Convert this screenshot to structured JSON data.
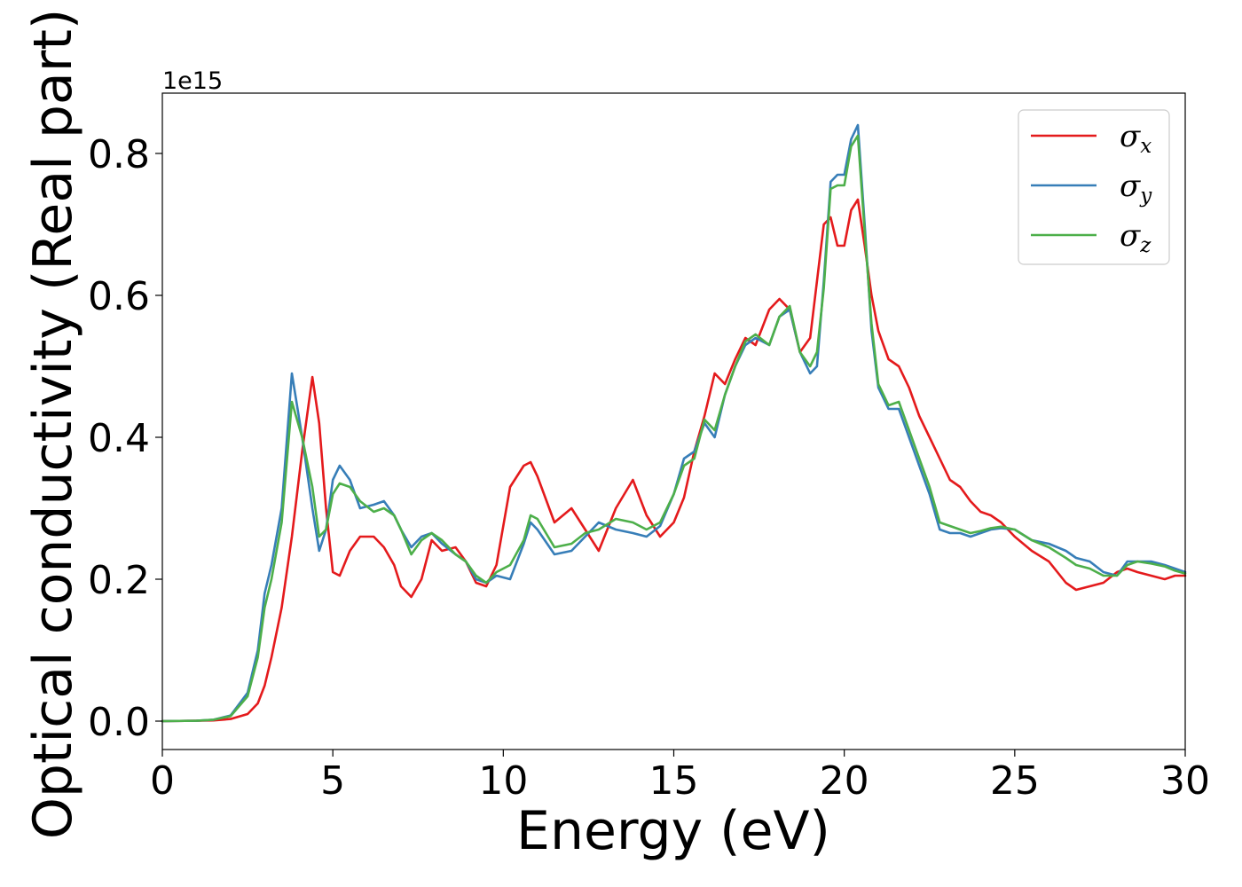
{
  "chart_data": {
    "type": "line",
    "xlabel": "Energy (eV)",
    "ylabel": "Optical conductivity (Real part)",
    "y_offset_label": "1e15",
    "xlim": [
      0,
      30
    ],
    "ylim": [
      -0.04,
      0.885
    ],
    "xticks": [
      0,
      5,
      10,
      15,
      20,
      25,
      30
    ],
    "xtick_labels": [
      "0",
      "5",
      "10",
      "15",
      "20",
      "25",
      "30"
    ],
    "yticks": [
      0.0,
      0.2,
      0.4,
      0.6,
      0.8
    ],
    "ytick_labels": [
      "0.0",
      "0.2",
      "0.4",
      "0.6",
      "0.8"
    ],
    "grid": false,
    "legend_position": "top-right",
    "series": [
      {
        "name": "σx",
        "symbol": "σ",
        "subscript": "x",
        "color": "#e41a1c",
        "x": [
          0,
          1,
          1.5,
          2,
          2.5,
          2.8,
          3,
          3.2,
          3.5,
          3.8,
          4.1,
          4.4,
          4.6,
          4.8,
          5.0,
          5.2,
          5.5,
          5.8,
          6.2,
          6.5,
          6.8,
          7.0,
          7.3,
          7.6,
          7.9,
          8.2,
          8.6,
          8.9,
          9.2,
          9.5,
          9.8,
          10.2,
          10.6,
          10.8,
          11.0,
          11.5,
          12.0,
          12.4,
          12.8,
          13.3,
          13.8,
          14.2,
          14.6,
          15.0,
          15.3,
          15.6,
          15.9,
          16.2,
          16.5,
          16.8,
          17.1,
          17.4,
          17.8,
          18.1,
          18.4,
          18.7,
          19.0,
          19.2,
          19.4,
          19.6,
          19.8,
          20.0,
          20.2,
          20.4,
          20.6,
          20.8,
          21.0,
          21.3,
          21.6,
          21.9,
          22.2,
          22.5,
          22.8,
          23.1,
          23.4,
          23.7,
          24.0,
          24.3,
          24.6,
          25.0,
          25.5,
          26.0,
          26.5,
          26.8,
          27.2,
          27.6,
          28.0,
          28.3,
          28.6,
          29.0,
          29.4,
          29.7,
          30.0
        ],
        "y": [
          0,
          0.0005,
          0.001,
          0.003,
          0.01,
          0.025,
          0.05,
          0.09,
          0.16,
          0.26,
          0.38,
          0.485,
          0.42,
          0.3,
          0.21,
          0.205,
          0.24,
          0.26,
          0.26,
          0.245,
          0.22,
          0.19,
          0.175,
          0.2,
          0.255,
          0.24,
          0.245,
          0.225,
          0.195,
          0.19,
          0.22,
          0.33,
          0.36,
          0.365,
          0.345,
          0.28,
          0.3,
          0.27,
          0.24,
          0.3,
          0.34,
          0.29,
          0.26,
          0.28,
          0.315,
          0.38,
          0.43,
          0.49,
          0.475,
          0.51,
          0.54,
          0.53,
          0.58,
          0.595,
          0.58,
          0.52,
          0.54,
          0.62,
          0.7,
          0.71,
          0.67,
          0.67,
          0.72,
          0.735,
          0.67,
          0.6,
          0.55,
          0.51,
          0.5,
          0.47,
          0.43,
          0.4,
          0.37,
          0.34,
          0.33,
          0.31,
          0.295,
          0.29,
          0.28,
          0.26,
          0.24,
          0.225,
          0.195,
          0.185,
          0.19,
          0.195,
          0.21,
          0.215,
          0.21,
          0.205,
          0.2,
          0.205,
          0.205
        ]
      },
      {
        "name": "σy",
        "symbol": "σ",
        "subscript": "y",
        "color": "#377eb8",
        "x": [
          0,
          1,
          1.5,
          2,
          2.5,
          2.8,
          3,
          3.2,
          3.5,
          3.8,
          4.1,
          4.4,
          4.6,
          4.8,
          5.0,
          5.2,
          5.5,
          5.8,
          6.2,
          6.5,
          6.8,
          7.0,
          7.3,
          7.6,
          7.9,
          8.2,
          8.6,
          8.9,
          9.2,
          9.5,
          9.8,
          10.2,
          10.6,
          10.8,
          11.0,
          11.5,
          12.0,
          12.4,
          12.8,
          13.3,
          13.8,
          14.2,
          14.6,
          15.0,
          15.3,
          15.6,
          15.9,
          16.2,
          16.5,
          16.8,
          17.1,
          17.4,
          17.8,
          18.1,
          18.4,
          18.7,
          19.0,
          19.2,
          19.4,
          19.6,
          19.8,
          20.0,
          20.2,
          20.4,
          20.6,
          20.8,
          21.0,
          21.3,
          21.6,
          21.9,
          22.2,
          22.5,
          22.8,
          23.1,
          23.4,
          23.7,
          24.0,
          24.3,
          24.6,
          25.0,
          25.5,
          26.0,
          26.5,
          26.8,
          27.2,
          27.6,
          28.0,
          28.3,
          28.6,
          29.0,
          29.4,
          29.7,
          30.0
        ],
        "y": [
          0,
          0.0005,
          0.002,
          0.008,
          0.04,
          0.1,
          0.18,
          0.22,
          0.3,
          0.49,
          0.4,
          0.3,
          0.24,
          0.27,
          0.34,
          0.36,
          0.34,
          0.3,
          0.305,
          0.31,
          0.29,
          0.27,
          0.245,
          0.26,
          0.265,
          0.25,
          0.235,
          0.225,
          0.2,
          0.195,
          0.205,
          0.2,
          0.25,
          0.28,
          0.27,
          0.235,
          0.24,
          0.26,
          0.28,
          0.27,
          0.265,
          0.26,
          0.275,
          0.32,
          0.37,
          0.38,
          0.42,
          0.4,
          0.46,
          0.5,
          0.53,
          0.54,
          0.53,
          0.57,
          0.58,
          0.52,
          0.49,
          0.5,
          0.62,
          0.76,
          0.77,
          0.77,
          0.82,
          0.84,
          0.7,
          0.55,
          0.47,
          0.44,
          0.44,
          0.4,
          0.36,
          0.32,
          0.27,
          0.265,
          0.265,
          0.26,
          0.265,
          0.27,
          0.272,
          0.27,
          0.255,
          0.25,
          0.24,
          0.23,
          0.225,
          0.21,
          0.205,
          0.225,
          0.225,
          0.225,
          0.22,
          0.215,
          0.21
        ]
      },
      {
        "name": "σz",
        "symbol": "σ",
        "subscript": "z",
        "color": "#4daf4a",
        "x": [
          0,
          1,
          1.5,
          2,
          2.5,
          2.8,
          3,
          3.2,
          3.5,
          3.8,
          4.1,
          4.4,
          4.6,
          4.8,
          5.0,
          5.2,
          5.5,
          5.8,
          6.2,
          6.5,
          6.8,
          7.0,
          7.3,
          7.6,
          7.9,
          8.2,
          8.6,
          8.9,
          9.2,
          9.5,
          9.8,
          10.2,
          10.6,
          10.8,
          11.0,
          11.5,
          12.0,
          12.4,
          12.8,
          13.3,
          13.8,
          14.2,
          14.6,
          15.0,
          15.3,
          15.6,
          15.9,
          16.2,
          16.5,
          16.8,
          17.1,
          17.4,
          17.8,
          18.1,
          18.4,
          18.7,
          19.0,
          19.2,
          19.4,
          19.6,
          19.8,
          20.0,
          20.2,
          20.4,
          20.6,
          20.8,
          21.0,
          21.3,
          21.6,
          21.9,
          22.2,
          22.5,
          22.8,
          23.1,
          23.4,
          23.7,
          24.0,
          24.3,
          24.6,
          25.0,
          25.5,
          26.0,
          26.5,
          26.8,
          27.2,
          27.6,
          28.0,
          28.3,
          28.6,
          29.0,
          29.4,
          29.7,
          30.0
        ],
        "y": [
          0,
          0.0005,
          0.002,
          0.007,
          0.035,
          0.09,
          0.16,
          0.2,
          0.28,
          0.45,
          0.4,
          0.33,
          0.26,
          0.27,
          0.32,
          0.335,
          0.33,
          0.31,
          0.295,
          0.3,
          0.29,
          0.27,
          0.235,
          0.255,
          0.265,
          0.255,
          0.235,
          0.225,
          0.205,
          0.195,
          0.21,
          0.22,
          0.255,
          0.29,
          0.285,
          0.245,
          0.25,
          0.265,
          0.27,
          0.285,
          0.28,
          0.27,
          0.28,
          0.32,
          0.36,
          0.37,
          0.425,
          0.41,
          0.46,
          0.5,
          0.535,
          0.545,
          0.53,
          0.57,
          0.585,
          0.52,
          0.5,
          0.52,
          0.61,
          0.75,
          0.755,
          0.755,
          0.81,
          0.825,
          0.69,
          0.56,
          0.475,
          0.445,
          0.45,
          0.41,
          0.37,
          0.33,
          0.28,
          0.275,
          0.27,
          0.265,
          0.268,
          0.272,
          0.274,
          0.27,
          0.255,
          0.245,
          0.23,
          0.22,
          0.215,
          0.205,
          0.205,
          0.22,
          0.225,
          0.222,
          0.218,
          0.212,
          0.208
        ]
      }
    ]
  }
}
